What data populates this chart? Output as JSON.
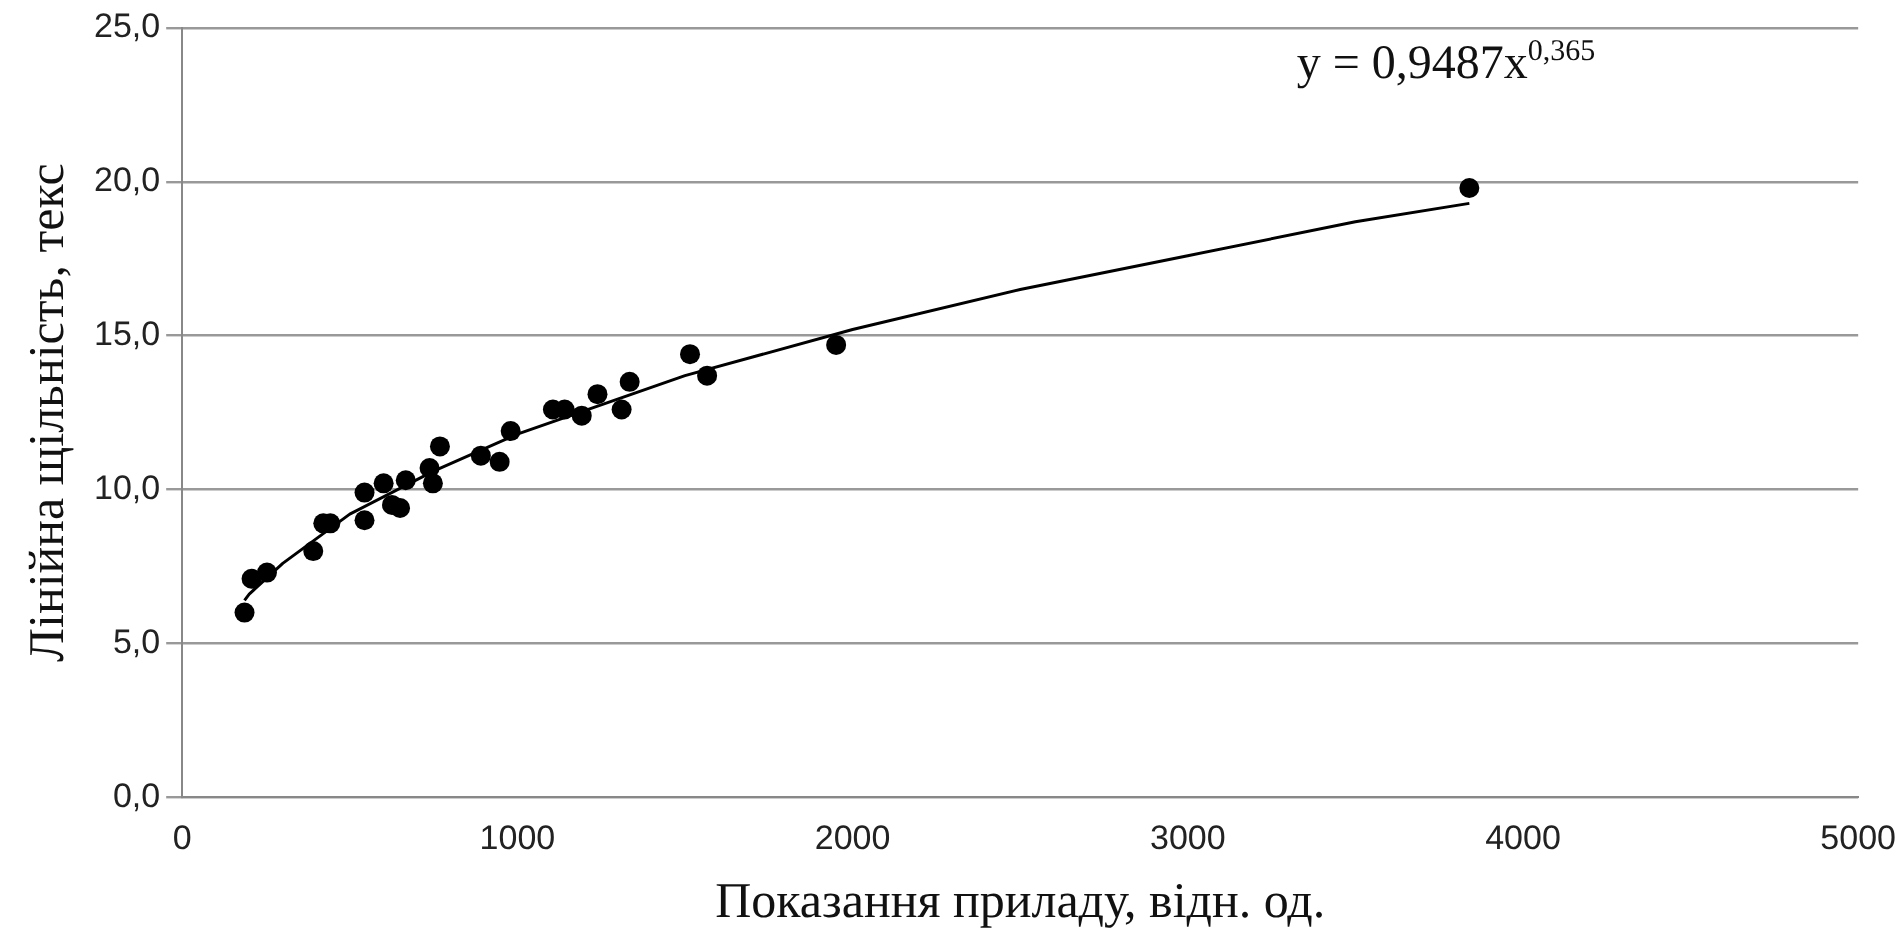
{
  "chart_data": {
    "type": "scatter",
    "xlabel": "Показання приладу, відн. од.",
    "ylabel": "Лінійна щільність, текс",
    "annotations": [
      "y = 0,9487x$^{0,365}$"
    ],
    "series": [
      {
        "type": "scatter",
        "color": "#000000",
        "marker": "circle",
        "x": [
          186,
          207,
          253,
          391,
          421,
          442,
          544,
          544,
          601,
          626,
          650,
          667,
          738,
          748,
          769,
          891,
          947,
          980,
          1106,
          1141,
          1192,
          1239,
          1311,
          1335,
          1515,
          1566,
          1951,
          3840
        ],
        "values": [
          6.0,
          7.1,
          7.3,
          8.0,
          8.9,
          8.9,
          9.0,
          9.9,
          10.2,
          9.5,
          9.4,
          10.3,
          10.7,
          10.2,
          11.4,
          11.1,
          10.9,
          11.9,
          12.6,
          12.6,
          12.4,
          13.1,
          12.6,
          13.5,
          14.4,
          13.7,
          14.7,
          19.8
        ]
      },
      {
        "type": "line",
        "color": "#000000",
        "marker": "none",
        "line_style": "solid",
        "x": [
          186,
          200,
          300,
          500,
          750,
          1000,
          1500,
          2000,
          2500,
          3000,
          3500,
          3840
        ],
        "values": [
          6.4,
          6.6,
          7.6,
          9.2,
          10.6,
          11.8,
          13.7,
          15.2,
          16.5,
          17.6,
          18.7,
          19.3
        ]
      }
    ],
    "xlim": [
      0,
      5000
    ],
    "xticks": [
      0,
      1000,
      2000,
      3000,
      4000,
      5000
    ],
    "ylim": [
      0,
      25
    ],
    "yticks": [
      {
        "value": 0,
        "label": "0,0"
      },
      {
        "value": 5,
        "label": "5,0"
      },
      {
        "value": 10,
        "label": "10,0"
      },
      {
        "value": 15,
        "label": "15,0"
      },
      {
        "value": 20,
        "label": "20,0"
      },
      {
        "value": 25,
        "label": "25,0"
      }
    ],
    "grid": "y",
    "legend": false
  }
}
